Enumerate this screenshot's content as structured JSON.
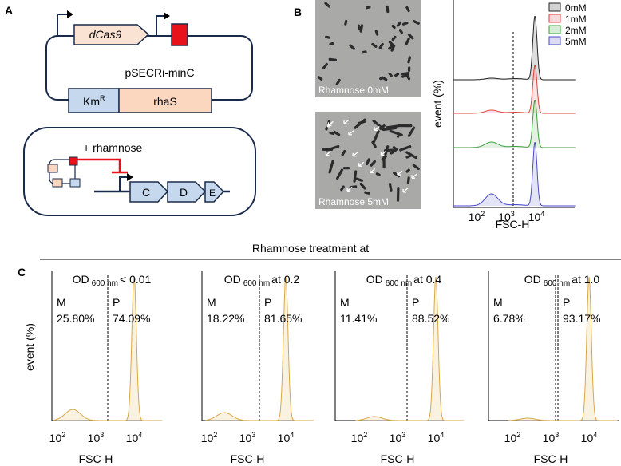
{
  "panel_labels": {
    "a": "A",
    "b": "B",
    "c": "C"
  },
  "panel_a": {
    "plasmid_name": "pSECRi-minC",
    "dcas9": "dCas9",
    "kmr": {
      "base": "Km",
      "sup": "R"
    },
    "rhas": "rhaS",
    "inducer": "+ rhamnose",
    "operon": [
      "C",
      "D",
      "E"
    ]
  },
  "panel_b": {
    "images": [
      "Rhamnose 0mM",
      "Rhamnose 5mM"
    ],
    "histogram": {
      "legend": [
        {
          "name": "0mM",
          "color": "#222222"
        },
        {
          "name": "1mM",
          "color": "#e04040"
        },
        {
          "name": "2mM",
          "color": "#3aa03a"
        },
        {
          "name": "5mM",
          "color": "#4a4ac8"
        }
      ],
      "y_label": "event (%)",
      "x_label": "FSC-H",
      "xticks": [
        {
          "base": "10",
          "exp": "2"
        },
        {
          "base": "10",
          "exp": "3"
        },
        {
          "base": "10",
          "exp": "4"
        }
      ]
    }
  },
  "panel_c": {
    "title": "Rhamnose treatment at",
    "y_label": "event (%)",
    "panels": [
      {
        "title": {
          "od": "OD",
          "sub": "600 nm",
          "cond": "< 0.01"
        },
        "m_label": "M",
        "m_value": "25.80%",
        "p_label": "P",
        "p_value": "74.09%",
        "x_label": "FSC-H",
        "xticks": [
          {
            "base": "10",
            "exp": "2"
          },
          {
            "base": "10",
            "exp": "3"
          },
          {
            "base": "10",
            "exp": "4"
          }
        ]
      },
      {
        "title": {
          "od": "OD",
          "sub": "600 nm",
          "cond": "at 0.2"
        },
        "m_label": "M",
        "m_value": "18.22%",
        "p_label": "P",
        "p_value": "81.65%",
        "x_label": "FSC-H",
        "xticks": [
          {
            "base": "10",
            "exp": "2"
          },
          {
            "base": "10",
            "exp": "3"
          },
          {
            "base": "10",
            "exp": "4"
          }
        ]
      },
      {
        "title": {
          "od": "OD",
          "sub": "600 nm",
          "cond": "at 0.4"
        },
        "m_label": "M",
        "m_value": "11.41%",
        "p_label": "P",
        "p_value": "88.52%",
        "x_label": "FSC-H",
        "xticks": [
          {
            "base": "10",
            "exp": "2"
          },
          {
            "base": "10",
            "exp": "3"
          },
          {
            "base": "10",
            "exp": "4"
          }
        ]
      },
      {
        "title": {
          "od": "OD",
          "sub": "600 nm",
          "cond": "at 1.0"
        },
        "m_label": "M",
        "m_value": "6.78%",
        "p_label": "P",
        "p_value": "93.17%",
        "x_label": "FSC-H",
        "xticks": [
          {
            "base": "10",
            "exp": "2"
          },
          {
            "base": "10",
            "exp": "3"
          },
          {
            "base": "10",
            "exp": "4"
          }
        ]
      }
    ]
  }
}
